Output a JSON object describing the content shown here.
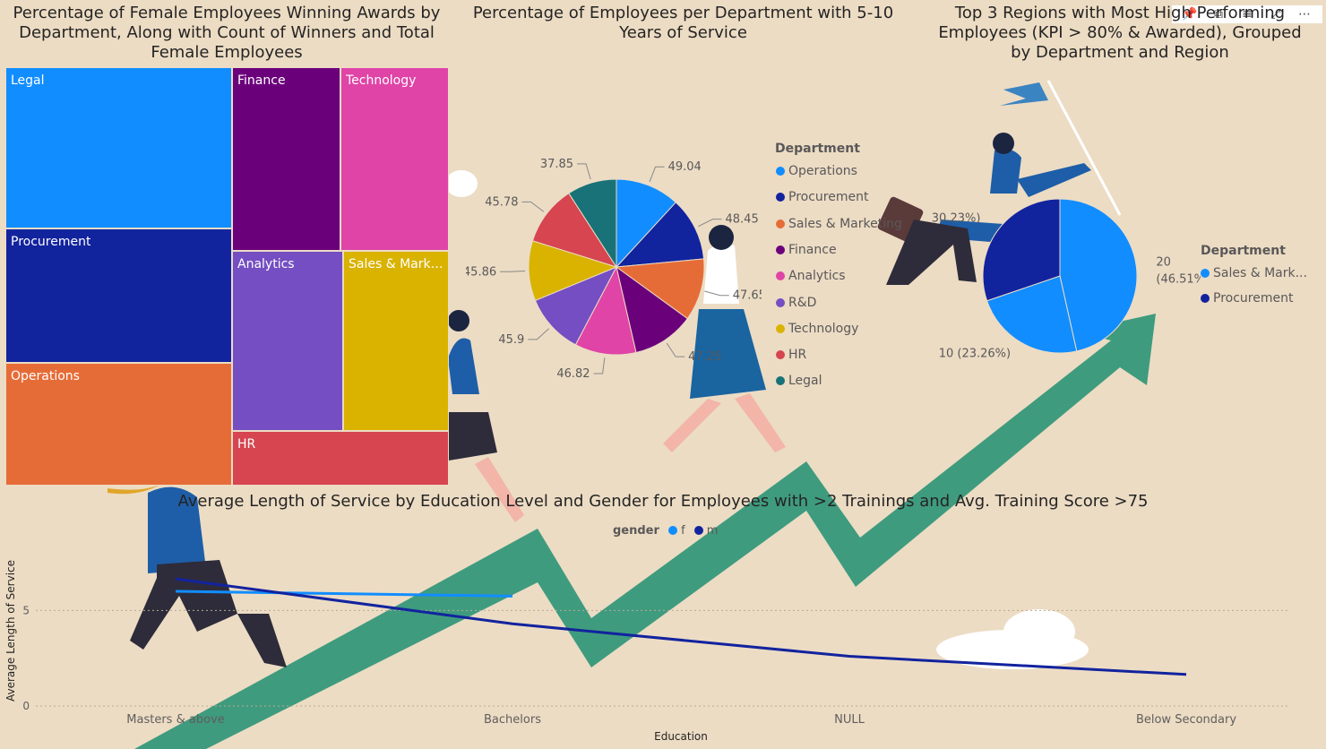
{
  "toolbar": {
    "icons": [
      "pin-icon",
      "copy-icon",
      "filter-icon",
      "focus-mode-icon",
      "more-options-icon"
    ]
  },
  "chart_data": [
    {
      "type": "treemap",
      "title": "Percentage of Female Employees Winning Awards by Department, Along with Count of Winners and Total Female Employees",
      "categories": [
        "Legal",
        "Procurement",
        "Operations",
        "Finance",
        "Technology",
        "Analytics",
        "Sales & Mark…",
        "HR"
      ],
      "colors": [
        "#118DFF",
        "#12239E",
        "#E66C37",
        "#6B007B",
        "#E044A7",
        "#744EC2",
        "#D9B300",
        "#D64550"
      ]
    },
    {
      "type": "pie",
      "title": "Percentage of Employees per Department with 5-10 Years of Service",
      "legend_title": "Department",
      "legend_position": "right",
      "categories": [
        "Operations",
        "Procurement",
        "Sales & Marketing",
        "Finance",
        "Analytics",
        "R&D",
        "Technology",
        "HR",
        "Legal"
      ],
      "values": [
        49.04,
        48.45,
        47.65,
        47.25,
        46.82,
        45.9,
        45.86,
        45.78,
        37.85
      ],
      "labels": [
        "49.04",
        "48.45",
        "47.65",
        "47.25",
        "46.82",
        "45.9",
        "45.86",
        "45.78",
        "37.85"
      ],
      "colors": [
        "#118DFF",
        "#12239E",
        "#E66C37",
        "#6B007B",
        "#E044A7",
        "#744EC2",
        "#D9B300",
        "#D64550",
        "#197278"
      ]
    },
    {
      "type": "pie",
      "title": "Top 3 Regions with Most High Performing Employees (KPI > 80% & Awarded), Grouped by Department and Region",
      "legend_title": "Department",
      "legend_position": "right",
      "categories": [
        "Sales & Mark...",
        "Procurement"
      ],
      "slices": [
        {
          "department": "Sales & Mark...",
          "value": 20,
          "label": "20",
          "label2": "(46.51%)"
        },
        {
          "department": "Sales & Mark...",
          "value": 10,
          "label": "10 (23.26%)"
        },
        {
          "department": "Procurement",
          "value": 13,
          "label": "13 (30.23%)"
        }
      ],
      "colors": [
        "#118DFF",
        "#12239E"
      ]
    },
    {
      "type": "line",
      "title": "Average Length of Service by Education Level and Gender for Employees with >2 Trainings and Avg. Training Score >75",
      "xlabel": "Education",
      "ylabel": "Average Length of Service",
      "legend_title": "gender",
      "legend_position": "top-center",
      "categories": [
        "Masters & above",
        "Bachelors",
        "NULL",
        "Below Secondary"
      ],
      "yticks": [
        "0",
        "5"
      ],
      "ylim": [
        0,
        7.5
      ],
      "series": [
        {
          "name": "f",
          "color": "#118DFF",
          "values": [
            6.0,
            5.75,
            null,
            null
          ]
        },
        {
          "name": "m",
          "color": "#12239E",
          "values": [
            6.65,
            4.3,
            2.6,
            1.65
          ]
        }
      ]
    }
  ]
}
